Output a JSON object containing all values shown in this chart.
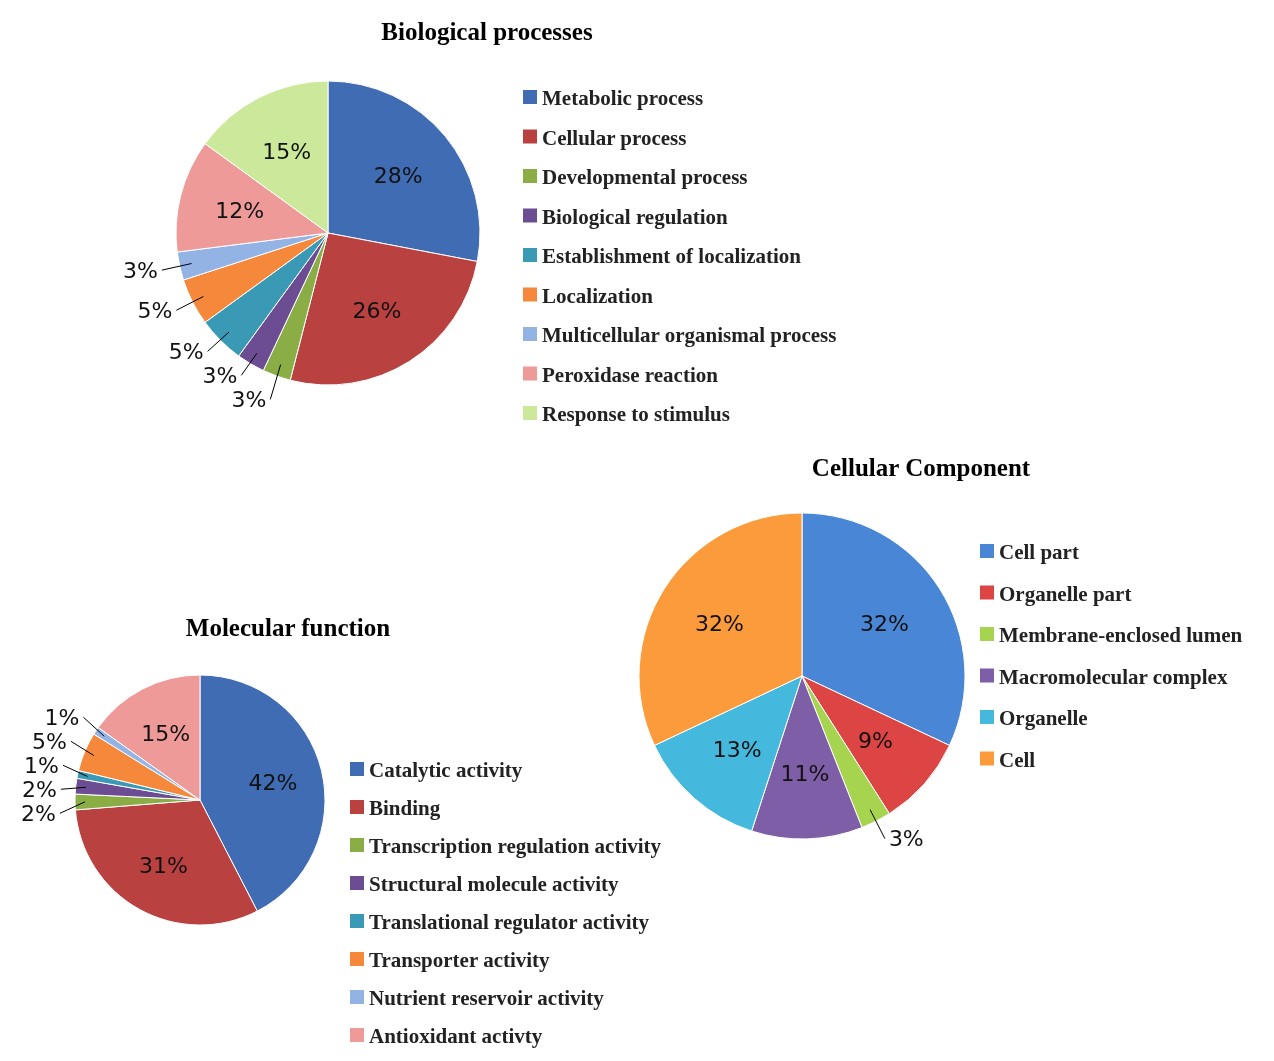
{
  "chart_data": [
    {
      "type": "pie",
      "title": "Biological processes",
      "legend": "right",
      "categories": [
        "Metabolic process",
        "Cellular process",
        "Developmental process",
        "Biological regulation",
        "Establishment of localization",
        "Localization",
        "Multicellular organismal process",
        "Peroxidase reaction",
        "Response to stimulus"
      ],
      "values": [
        28,
        26,
        3,
        3,
        5,
        5,
        3,
        12,
        15
      ],
      "value_labels": [
        "28%",
        "26%",
        "3%",
        "3%",
        "5%",
        "5%",
        "3%",
        "12%",
        "15%"
      ],
      "colors": [
        "#3f6cb3",
        "#b94140",
        "#8aad45",
        "#6c4d93",
        "#3a9ab5",
        "#f5883a",
        "#94b3e5",
        "#ee9a99",
        "#cce99b"
      ]
    },
    {
      "type": "pie",
      "title": "Molecular function",
      "legend": "right",
      "categories": [
        "Catalytic activity",
        "Binding",
        "Transcription regulation activity",
        "Structural molecule activity",
        "Translational regulator activity",
        "Transporter activity",
        "Nutrient reservoir activity",
        "Antioxidant activty"
      ],
      "values": [
        42,
        31,
        2,
        2,
        1,
        5,
        1,
        15
      ],
      "value_labels": [
        "42%",
        "31%",
        "2%",
        "2%",
        "1%",
        "5%",
        "1%",
        "15%"
      ],
      "colors": [
        "#3f6cb3",
        "#b94140",
        "#8aad45",
        "#6c4d93",
        "#3a9ab5",
        "#f5883a",
        "#94b3e5",
        "#ee9a99"
      ]
    },
    {
      "type": "pie",
      "title": "Cellular Component",
      "legend": "right",
      "categories": [
        "Cell part",
        "Organelle part",
        "Membrane-enclosed lumen",
        "Macromolecular complex",
        "Organelle",
        "Cell"
      ],
      "values": [
        32,
        9,
        3,
        11,
        13,
        32
      ],
      "value_labels": [
        "32%",
        "9%",
        "3%",
        "11%",
        "13%",
        "32%"
      ],
      "colors": [
        "#4a86d6",
        "#dd4444",
        "#a6d44e",
        "#7f5ea8",
        "#45b8dd",
        "#fb9b3c"
      ]
    }
  ]
}
